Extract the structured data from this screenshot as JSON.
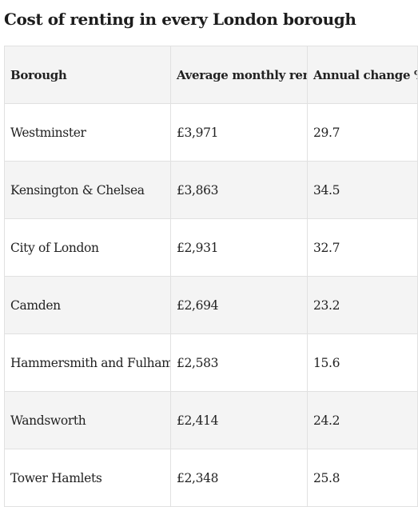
{
  "page": {
    "title": "Cost of renting in every London borough"
  },
  "table": {
    "headers": [
      "Borough",
      "Average monthly rent",
      "Annual change %"
    ],
    "rows": [
      [
        "Westminster",
        "£3,971",
        "29.7"
      ],
      [
        "Kensington & Chelsea",
        "£3,863",
        "34.5"
      ],
      [
        "City of London",
        "£2,931",
        "32.7"
      ],
      [
        "Camden",
        "£2,694",
        "23.2"
      ],
      [
        "Hammersmith and Fulham",
        "£2,583",
        "15.6"
      ],
      [
        "Wandsworth",
        "£2,414",
        "24.2"
      ],
      [
        "Tower Hamlets",
        "£2,348",
        "25.8"
      ]
    ]
  },
  "colors": {
    "stripe": "#f4f4f4",
    "border": "#e1e1e1",
    "text": "#222222"
  }
}
